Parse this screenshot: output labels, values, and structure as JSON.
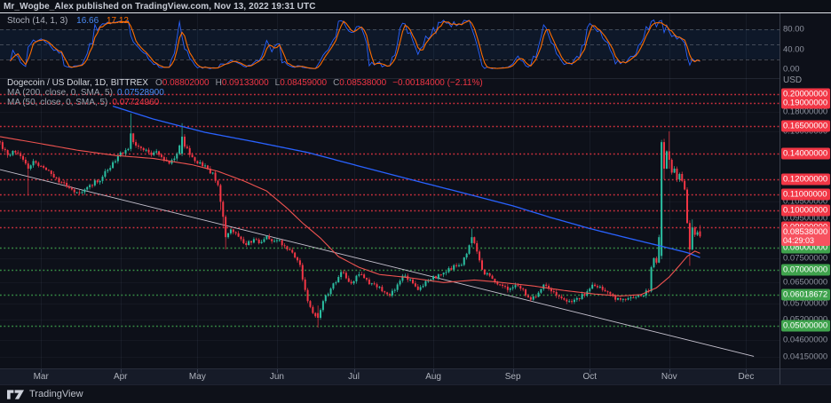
{
  "meta": {
    "attribution": "Mr_Wogbe_Alex published on TradingView.com, Nov 13, 2022 19:31 UTC"
  },
  "branding": {
    "logo_text": "TradingView"
  },
  "colors": {
    "bg": "#0d1019",
    "topbar_bg": "#0c0f16",
    "up": "#2bbfa2",
    "down": "#f23645",
    "level_red": "#f23645",
    "level_green": "#3fa34d",
    "current_label": "#f7525f",
    "ma200": "#2962ff",
    "ma200_text": "#4a8bf5",
    "ma50": "#ef5350",
    "stoch_k": "#2962ff",
    "stoch_k_text": "#4a8bf5",
    "stoch_d": "#ff6d00",
    "trendline": "#d0cbd8",
    "grid": "rgba(148,160,190,0.06)",
    "band_fill": "rgba(33,140,255,0.07)",
    "band_line": "rgba(134,137,147,0.45)"
  },
  "stoch_panel": {
    "legend": {
      "label": "Stoch (14, 1, 3)",
      "k_value": "16.66",
      "d_value": "17.12"
    },
    "ticks": [
      {
        "label": "80.00",
        "value": 80
      },
      {
        "label": "40.00",
        "value": 40
      },
      {
        "label": "0.00",
        "value": 0
      }
    ]
  },
  "price_panel": {
    "legend": {
      "symbol": "Dogecoin / US Dollar, 1D, BITTREX",
      "ohlc": [
        {
          "k": "O",
          "v": "0.08802000"
        },
        {
          "k": "H",
          "v": "0.09133000"
        },
        {
          "k": "L",
          "v": "0.08459000"
        },
        {
          "k": "C",
          "v": "0.08538000"
        }
      ],
      "change": "−0.00184000 (−2.11%)",
      "ma200": {
        "label": "MA (200, close, 0, SMA, 5)",
        "value": "0.07528900"
      },
      "ma50": {
        "label": "MA (50, close, 0, SMA, 5)",
        "value": "0.07724960"
      }
    },
    "axis": {
      "currency": "USD",
      "ticks": [
        {
          "label": "0.20000000",
          "price": 0.2,
          "kind": "red"
        },
        {
          "label": "0.19000000",
          "price": 0.19,
          "kind": "red"
        },
        {
          "label": "0.18000000",
          "price": 0.18,
          "kind": "plain"
        },
        {
          "label": "0.16500000",
          "price": 0.165,
          "kind": "red"
        },
        {
          "label": "0.16000000",
          "price": 0.16,
          "kind": "plain"
        },
        {
          "label": "0.14000000",
          "price": 0.14,
          "kind": "red"
        },
        {
          "label": "0.12000000",
          "price": 0.12,
          "kind": "red"
        },
        {
          "label": "0.11000000",
          "price": 0.11,
          "kind": "red"
        },
        {
          "label": "0.10500000",
          "price": 0.105,
          "kind": "plain"
        },
        {
          "label": "0.10000000",
          "price": 0.1,
          "kind": "red"
        },
        {
          "label": "0.09500000",
          "price": 0.095,
          "kind": "plain"
        },
        {
          "label": "0.09000000",
          "price": 0.09,
          "kind": "red"
        },
        {
          "label": "0.08538000",
          "price": 0.08538,
          "kind": "current",
          "sub": "04:29:03"
        },
        {
          "label": "0.08000000",
          "price": 0.08,
          "kind": "green"
        },
        {
          "label": "0.07500000",
          "price": 0.075,
          "kind": "plain"
        },
        {
          "label": "0.07000000",
          "price": 0.07,
          "kind": "green"
        },
        {
          "label": "0.06500000",
          "price": 0.065,
          "kind": "plain"
        },
        {
          "label": "0.06018672",
          "price": 0.06018672,
          "kind": "green"
        },
        {
          "label": "0.05700000",
          "price": 0.057,
          "kind": "plain"
        },
        {
          "label": "0.05200000",
          "price": 0.052,
          "kind": "plain"
        },
        {
          "label": "0.05000000",
          "price": 0.05,
          "kind": "green"
        },
        {
          "label": "0.04600000",
          "price": 0.046,
          "kind": "plain"
        },
        {
          "label": "0.04150000",
          "price": 0.0415,
          "kind": "plain"
        }
      ]
    }
  },
  "time_axis": {
    "months": [
      {
        "label": "Mar",
        "day": 16
      },
      {
        "label": "Apr",
        "day": 47
      },
      {
        "label": "May",
        "day": 77
      },
      {
        "label": "Jun",
        "day": 108
      },
      {
        "label": "Jul",
        "day": 138
      },
      {
        "label": "Aug",
        "day": 169
      },
      {
        "label": "Sep",
        "day": 200
      },
      {
        "label": "Oct",
        "day": 230
      },
      {
        "label": "Nov",
        "day": 261
      },
      {
        "label": "Dec",
        "day": 291
      }
    ]
  },
  "chart_data": [
    {
      "type": "line",
      "title": "Stoch (14, 1, 3)",
      "panel": "indicator",
      "series": [
        {
          "name": "%K",
          "last": 16.66
        },
        {
          "name": "%D",
          "last": 17.12
        }
      ],
      "bands": [
        80,
        50,
        20
      ],
      "ticks": [
        80,
        40,
        0
      ],
      "ylim": [
        0,
        100
      ],
      "note": "stochastic oscillator computed from the daily candles below"
    },
    {
      "type": "candlestick",
      "title": "Dogecoin / US Dollar, 1D, BITTREX",
      "yscale": "log",
      "ylim": [
        0.0388,
        0.2199
      ],
      "days_total": 304,
      "last_day": 273,
      "last_ohlc": {
        "o": 0.08802,
        "h": 0.09133,
        "l": 0.08459,
        "c": 0.08538
      },
      "price_keypoints": [
        [
          0,
          0.15
        ],
        [
          2,
          0.143
        ],
        [
          4,
          0.139
        ],
        [
          6,
          0.141
        ],
        [
          8,
          0.138
        ],
        [
          10,
          0.132
        ],
        [
          11,
          0.128
        ],
        [
          13,
          0.134
        ],
        [
          16,
          0.13
        ],
        [
          18,
          0.127
        ],
        [
          20,
          0.124
        ],
        [
          22,
          0.121
        ],
        [
          24,
          0.118
        ],
        [
          26,
          0.115
        ],
        [
          28,
          0.113
        ],
        [
          31,
          0.111
        ],
        [
          33,
          0.113
        ],
        [
          35,
          0.116
        ],
        [
          38,
          0.118
        ],
        [
          40,
          0.122
        ],
        [
          42,
          0.127
        ],
        [
          44,
          0.133
        ],
        [
          46,
          0.138
        ],
        [
          47,
          0.141
        ],
        [
          49,
          0.143
        ],
        [
          50,
          0.144
        ],
        [
          51,
          0.158
        ],
        [
          52,
          0.15
        ],
        [
          54,
          0.146
        ],
        [
          56,
          0.143
        ],
        [
          58,
          0.141
        ],
        [
          60,
          0.141
        ],
        [
          62,
          0.139
        ],
        [
          64,
          0.135
        ],
        [
          66,
          0.132
        ],
        [
          68,
          0.136
        ],
        [
          69,
          0.14
        ],
        [
          70,
          0.147
        ],
        [
          71,
          0.155
        ],
        [
          72,
          0.146
        ],
        [
          74,
          0.139
        ],
        [
          76,
          0.134
        ],
        [
          77,
          0.132
        ],
        [
          79,
          0.13
        ],
        [
          81,
          0.128
        ],
        [
          83,
          0.125
        ],
        [
          85,
          0.116
        ],
        [
          86,
          0.105
        ],
        [
          87,
          0.096
        ],
        [
          88,
          0.085
        ],
        [
          89,
          0.087
        ],
        [
          90,
          0.089
        ],
        [
          92,
          0.087
        ],
        [
          94,
          0.084
        ],
        [
          95,
          0.082
        ],
        [
          97,
          0.083
        ],
        [
          99,
          0.084
        ],
        [
          101,
          0.082
        ],
        [
          103,
          0.084
        ],
        [
          104,
          0.0855
        ],
        [
          106,
          0.083
        ],
        [
          108,
          0.0835
        ],
        [
          110,
          0.081
        ],
        [
          112,
          0.079
        ],
        [
          114,
          0.0775
        ],
        [
          116,
          0.074
        ],
        [
          117,
          0.072
        ],
        [
          118,
          0.066
        ],
        [
          119,
          0.062
        ],
        [
          120,
          0.058
        ],
        [
          121,
          0.056
        ],
        [
          122,
          0.054
        ],
        [
          124,
          0.0525
        ],
        [
          125,
          0.055
        ],
        [
          126,
          0.058
        ],
        [
          127,
          0.06
        ],
        [
          129,
          0.0625
        ],
        [
          130,
          0.0645
        ],
        [
          132,
          0.067
        ],
        [
          133,
          0.069
        ],
        [
          135,
          0.0665
        ],
        [
          137,
          0.0645
        ],
        [
          139,
          0.0675
        ],
        [
          141,
          0.068
        ],
        [
          143,
          0.066
        ],
        [
          145,
          0.0645
        ],
        [
          147,
          0.063
        ],
        [
          149,
          0.0615
        ],
        [
          151,
          0.0605
        ],
        [
          152,
          0.06
        ],
        [
          154,
          0.062
        ],
        [
          156,
          0.0655
        ],
        [
          158,
          0.0675
        ],
        [
          160,
          0.066
        ],
        [
          161,
          0.0645
        ],
        [
          163,
          0.062
        ],
        [
          165,
          0.0635
        ],
        [
          167,
          0.0655
        ],
        [
          168,
          0.066
        ],
        [
          170,
          0.0665
        ],
        [
          172,
          0.068
        ],
        [
          174,
          0.069
        ],
        [
          176,
          0.07
        ],
        [
          178,
          0.0715
        ],
        [
          180,
          0.072
        ],
        [
          182,
          0.077
        ],
        [
          183,
          0.081
        ],
        [
          184,
          0.085
        ],
        [
          185,
          0.082
        ],
        [
          186,
          0.078
        ],
        [
          187,
          0.074
        ],
        [
          188,
          0.07
        ],
        [
          190,
          0.0685
        ],
        [
          191,
          0.0675
        ],
        [
          193,
          0.065
        ],
        [
          195,
          0.064
        ],
        [
          196,
          0.0635
        ],
        [
          198,
          0.062
        ],
        [
          200,
          0.063
        ],
        [
          202,
          0.0635
        ],
        [
          203,
          0.0625
        ],
        [
          205,
          0.06
        ],
        [
          207,
          0.0585
        ],
        [
          209,
          0.0595
        ],
        [
          210,
          0.061
        ],
        [
          212,
          0.064
        ],
        [
          214,
          0.0625
        ],
        [
          215,
          0.0615
        ],
        [
          217,
          0.06
        ],
        [
          219,
          0.059
        ],
        [
          220,
          0.0585
        ],
        [
          222,
          0.058
        ],
        [
          224,
          0.0585
        ],
        [
          225,
          0.059
        ],
        [
          227,
          0.0605
        ],
        [
          229,
          0.0615
        ],
        [
          230,
          0.0625
        ],
        [
          232,
          0.0635
        ],
        [
          233,
          0.063
        ],
        [
          235,
          0.062
        ],
        [
          236,
          0.0615
        ],
        [
          238,
          0.0605
        ],
        [
          239,
          0.06
        ],
        [
          241,
          0.059
        ],
        [
          242,
          0.0585
        ],
        [
          244,
          0.0585
        ],
        [
          245,
          0.059
        ],
        [
          247,
          0.0592
        ],
        [
          248,
          0.0595
        ],
        [
          250,
          0.0598
        ],
        [
          251,
          0.06
        ],
        [
          253,
          0.0615
        ],
        [
          254,
          0.071
        ],
        [
          255,
          0.075
        ],
        [
          256,
          0.073
        ],
        [
          257,
          0.085
        ],
        [
          258,
          0.15
        ],
        [
          259,
          0.128
        ],
        [
          260,
          0.142
        ],
        [
          261,
          0.135
        ],
        [
          262,
          0.125
        ],
        [
          263,
          0.128
        ],
        [
          264,
          0.12
        ],
        [
          265,
          0.124
        ],
        [
          266,
          0.119
        ],
        [
          267,
          0.113
        ],
        [
          268,
          0.0925
        ],
        [
          269,
          0.079
        ],
        [
          270,
          0.09
        ],
        [
          271,
          0.0862
        ],
        [
          272,
          0.0875
        ],
        [
          273,
          0.08538
        ]
      ],
      "explicit_candles": {
        "11": [
          0.132,
          0.134,
          0.109,
          0.128
        ],
        "51": [
          0.144,
          0.178,
          0.142,
          0.158
        ],
        "71": [
          0.14,
          0.168,
          0.138,
          0.155
        ],
        "86": [
          0.116,
          0.117,
          0.1,
          0.105
        ],
        "87": [
          0.105,
          0.106,
          0.09,
          0.096
        ],
        "88": [
          0.096,
          0.097,
          0.079,
          0.085
        ],
        "124": [
          0.054,
          0.0565,
          0.0495,
          0.0525
        ],
        "184": [
          0.082,
          0.0895,
          0.08,
          0.085
        ],
        "258": [
          0.076,
          0.152,
          0.0745,
          0.15
        ],
        "259": [
          0.15,
          0.153,
          0.12,
          0.128
        ],
        "261": [
          0.142,
          0.16,
          0.128,
          0.135
        ],
        "269": [
          0.0925,
          0.094,
          0.0716,
          0.079
        ],
        "270": [
          0.079,
          0.0945,
          0.0785,
          0.09
        ],
        "273": [
          0.08802,
          0.09133,
          0.08459,
          0.08538
        ]
      },
      "ma200_keypoints": [
        [
          44,
          0.186
        ],
        [
          60,
          0.172
        ],
        [
          80,
          0.159
        ],
        [
          100,
          0.15
        ],
        [
          120,
          0.141
        ],
        [
          140,
          0.13
        ],
        [
          160,
          0.12
        ],
        [
          180,
          0.111
        ],
        [
          200,
          0.1025
        ],
        [
          215,
          0.0955
        ],
        [
          230,
          0.0895
        ],
        [
          245,
          0.0845
        ],
        [
          258,
          0.0805
        ],
        [
          268,
          0.0775
        ],
        [
          273,
          0.0753
        ]
      ],
      "ma50_keypoints": [
        [
          0,
          0.155
        ],
        [
          15,
          0.149
        ],
        [
          30,
          0.143
        ],
        [
          45,
          0.1385
        ],
        [
          60,
          0.136
        ],
        [
          75,
          0.131
        ],
        [
          85,
          0.126
        ],
        [
          95,
          0.119
        ],
        [
          104,
          0.112
        ],
        [
          112,
          0.101
        ],
        [
          118,
          0.0925
        ],
        [
          125,
          0.0845
        ],
        [
          132,
          0.0757
        ],
        [
          140,
          0.071
        ],
        [
          148,
          0.068
        ],
        [
          159,
          0.0668
        ],
        [
          173,
          0.0648
        ],
        [
          185,
          0.0658
        ],
        [
          194,
          0.065
        ],
        [
          208,
          0.0635
        ],
        [
          220,
          0.0618
        ],
        [
          232,
          0.0605
        ],
        [
          242,
          0.0598
        ],
        [
          250,
          0.0603
        ],
        [
          256,
          0.0628
        ],
        [
          261,
          0.067
        ],
        [
          265,
          0.0718
        ],
        [
          268,
          0.0758
        ],
        [
          271,
          0.0782
        ],
        [
          273,
          0.0772
        ]
      ],
      "trendline": {
        "d1": 0,
        "p1": 0.1273,
        "d2": 294,
        "p2": 0.0417
      },
      "levels": {
        "red": [
          0.2,
          0.19,
          0.165,
          0.14,
          0.12,
          0.11,
          0.1,
          0.09
        ],
        "green": [
          0.08,
          0.07,
          0.06018672,
          0.05
        ]
      },
      "grid_prices": [
        0.18,
        0.16,
        0.105,
        0.095,
        0.075,
        0.065,
        0.057,
        0.052,
        0.046,
        0.0415
      ]
    }
  ]
}
